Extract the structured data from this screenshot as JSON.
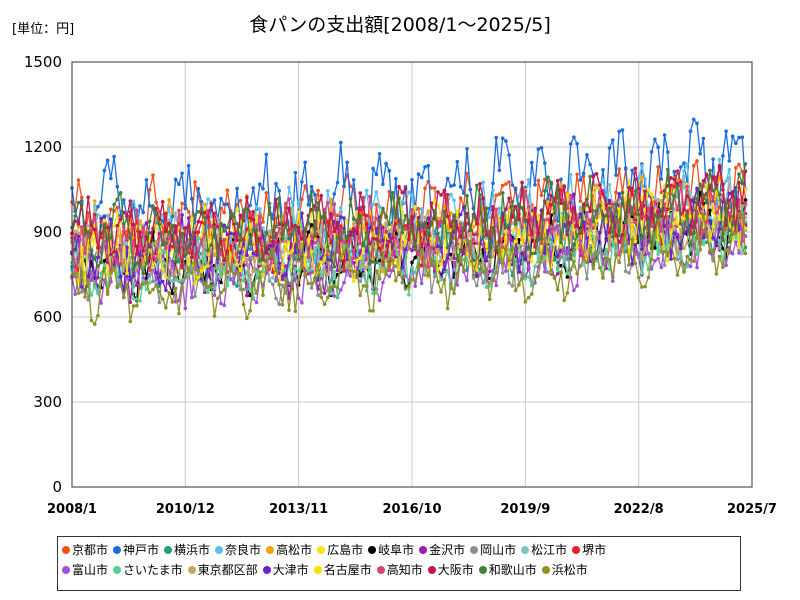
{
  "chart_data": {
    "type": "line",
    "title": "食パンの支出額[2008/1～2025/5]",
    "unit_label": "[単位：円]",
    "x_start": "2008/1",
    "x_end": "2025/5",
    "x_ticks": [
      "2008/1",
      "2010/12",
      "2013/11",
      "2016/10",
      "2019/9",
      "2022/8",
      "2025/7"
    ],
    "y_ticks": [
      "0",
      "300",
      "600",
      "900",
      "1200",
      "1500"
    ],
    "ylim": [
      0,
      1500
    ],
    "grid": true,
    "legend_position": "bottom",
    "series": [
      {
        "name": "京都市",
        "color": "#f0521e",
        "base": 930,
        "amp": 80,
        "noise": 90,
        "trend": 110,
        "seed": 1
      },
      {
        "name": "神戸市",
        "color": "#1a6ddb",
        "base": 1000,
        "amp": 90,
        "noise": 110,
        "trend": 150,
        "seed": 2
      },
      {
        "name": "横浜市",
        "color": "#1aa36f",
        "base": 810,
        "amp": 50,
        "noise": 70,
        "trend": 120,
        "seed": 3
      },
      {
        "name": "奈良市",
        "color": "#5bc0eb",
        "base": 900,
        "amp": 70,
        "noise": 90,
        "trend": 120,
        "seed": 4
      },
      {
        "name": "高松市",
        "color": "#f0a30a",
        "base": 880,
        "amp": 60,
        "noise": 90,
        "trend": 120,
        "seed": 5
      },
      {
        "name": "広島市",
        "color": "#f7e11b",
        "base": 860,
        "amp": 60,
        "noise": 80,
        "trend": 130,
        "seed": 6
      },
      {
        "name": "岐阜市",
        "color": "#000000",
        "base": 780,
        "amp": 60,
        "noise": 70,
        "trend": 160,
        "seed": 7
      },
      {
        "name": "金沢市",
        "color": "#9b1fa8",
        "base": 780,
        "amp": 60,
        "noise": 80,
        "trend": 140,
        "seed": 8
      },
      {
        "name": "岡山市",
        "color": "#8a8f94",
        "base": 760,
        "amp": 50,
        "noise": 80,
        "trend": 140,
        "seed": 9
      },
      {
        "name": "松江市",
        "color": "#7ec4c4",
        "base": 850,
        "amp": 60,
        "noise": 90,
        "trend": 120,
        "seed": 10
      },
      {
        "name": "堺市",
        "color": "#e0202e",
        "base": 860,
        "amp": 60,
        "noise": 80,
        "trend": 150,
        "seed": 11
      },
      {
        "name": "富山市",
        "color": "#a64fd6",
        "base": 740,
        "amp": 60,
        "noise": 70,
        "trend": 150,
        "seed": 12
      },
      {
        "name": "さいたま市",
        "color": "#55d18f",
        "base": 760,
        "amp": 50,
        "noise": 70,
        "trend": 130,
        "seed": 13
      },
      {
        "name": "東京都区部",
        "color": "#c8a46a",
        "base": 830,
        "amp": 50,
        "noise": 70,
        "trend": 120,
        "seed": 14
      },
      {
        "name": "大津市",
        "color": "#6a23c9",
        "base": 830,
        "amp": 60,
        "noise": 80,
        "trend": 130,
        "seed": 15
      },
      {
        "name": "名古屋市",
        "color": "#ffe100",
        "base": 830,
        "amp": 60,
        "noise": 80,
        "trend": 130,
        "seed": 16
      },
      {
        "name": "高知市",
        "color": "#d6457e",
        "base": 870,
        "amp": 60,
        "noise": 80,
        "trend": 130,
        "seed": 17
      },
      {
        "name": "大阪市",
        "color": "#c0174e",
        "base": 900,
        "amp": 60,
        "noise": 80,
        "trend": 140,
        "seed": 18
      },
      {
        "name": "和歌山市",
        "color": "#3f7f3a",
        "base": 890,
        "amp": 60,
        "noise": 90,
        "trend": 120,
        "seed": 19
      },
      {
        "name": "浜松市",
        "color": "#8f8f2a",
        "base": 700,
        "amp": 60,
        "noise": 70,
        "trend": 160,
        "seed": 20
      }
    ]
  }
}
